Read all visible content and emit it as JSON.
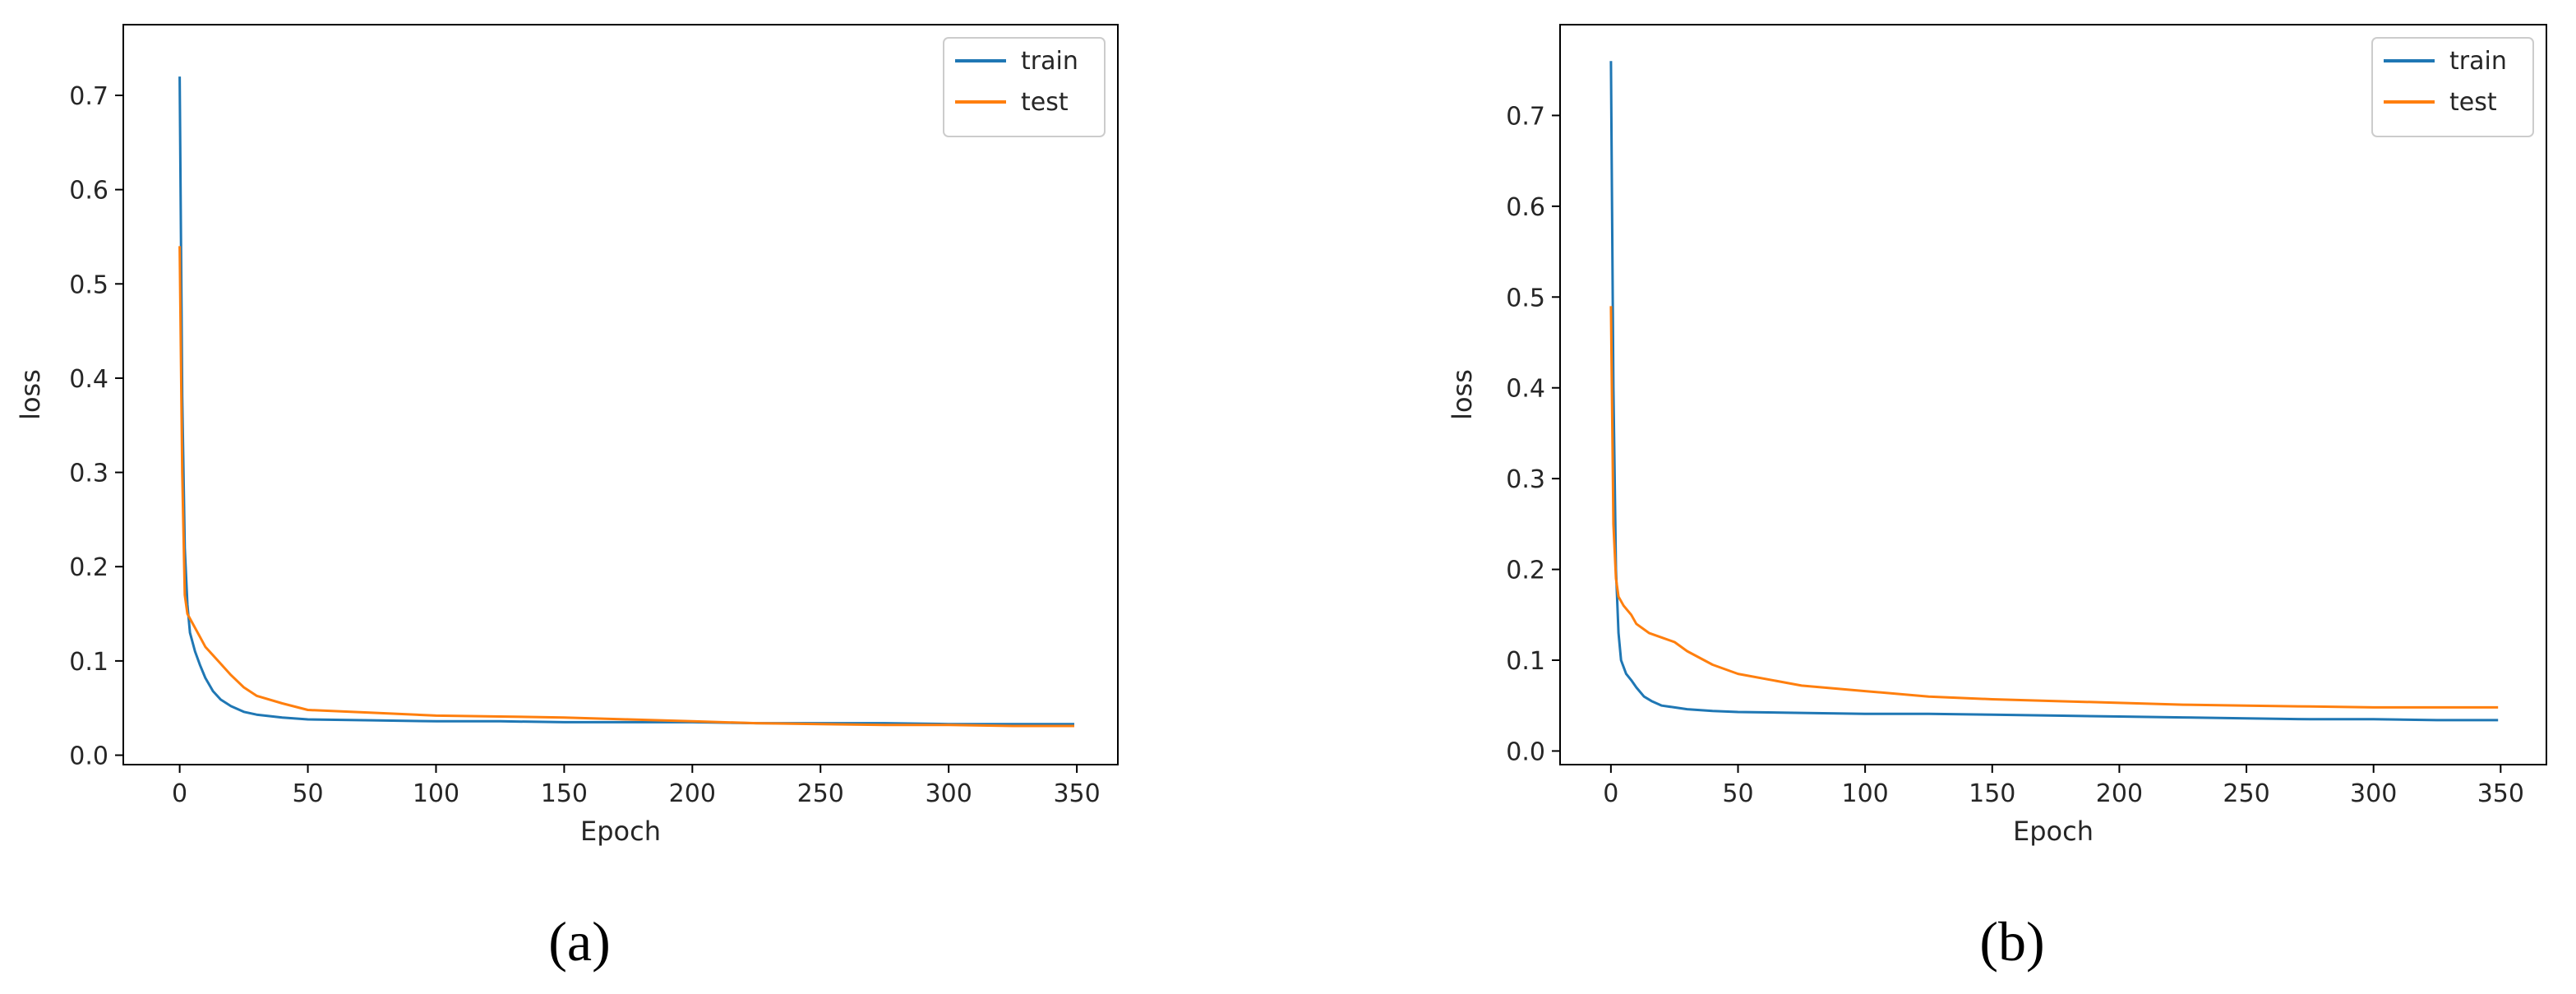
{
  "chart_data": [
    {
      "type": "line",
      "caption": "(a)",
      "xlabel": "Epoch",
      "ylabel": "loss",
      "xlim": [
        -22,
        366
      ],
      "ylim": [
        -0.01,
        0.775
      ],
      "x_ticks": [
        0,
        50,
        100,
        150,
        200,
        250,
        300,
        350
      ],
      "y_ticks": [
        0.0,
        0.1,
        0.2,
        0.3,
        0.4,
        0.5,
        0.6,
        0.7
      ],
      "y_tick_labels": [
        "0.0",
        "0.1",
        "0.2",
        "0.3",
        "0.4",
        "0.5",
        "0.6",
        "0.7"
      ],
      "x_tick_labels": [
        "0",
        "50",
        "100",
        "150",
        "200",
        "250",
        "300",
        "350"
      ],
      "grid": false,
      "legend_position": "top-right",
      "series": [
        {
          "name": "train",
          "color": "#1f77b4",
          "x": [
            0,
            1,
            2,
            3,
            4,
            6,
            8,
            10,
            13,
            16,
            20,
            25,
            30,
            40,
            50,
            75,
            100,
            125,
            150,
            175,
            200,
            225,
            250,
            275,
            300,
            325,
            349
          ],
          "y": [
            0.72,
            0.38,
            0.22,
            0.16,
            0.13,
            0.11,
            0.095,
            0.082,
            0.068,
            0.059,
            0.052,
            0.046,
            0.043,
            0.04,
            0.038,
            0.037,
            0.036,
            0.036,
            0.035,
            0.035,
            0.035,
            0.034,
            0.034,
            0.034,
            0.033,
            0.033,
            0.033
          ]
        },
        {
          "name": "test",
          "color": "#ff7f0e",
          "x": [
            0,
            1,
            2,
            3,
            5,
            8,
            10,
            15,
            20,
            25,
            30,
            40,
            50,
            75,
            100,
            125,
            150,
            175,
            200,
            225,
            250,
            275,
            300,
            325,
            349
          ],
          "y": [
            0.54,
            0.3,
            0.17,
            0.15,
            0.14,
            0.125,
            0.115,
            0.1,
            0.085,
            0.072,
            0.063,
            0.055,
            0.048,
            0.045,
            0.042,
            0.041,
            0.04,
            0.038,
            0.036,
            0.034,
            0.033,
            0.032,
            0.032,
            0.031,
            0.031
          ]
        }
      ]
    },
    {
      "type": "line",
      "caption": "(b)",
      "xlabel": "Epoch",
      "ylabel": "loss",
      "xlim": [
        -20,
        368
      ],
      "ylim": [
        -0.015,
        0.8
      ],
      "x_ticks": [
        0,
        50,
        100,
        150,
        200,
        250,
        300,
        350
      ],
      "y_ticks": [
        0.0,
        0.1,
        0.2,
        0.3,
        0.4,
        0.5,
        0.6,
        0.7
      ],
      "y_tick_labels": [
        "0.0",
        "0.1",
        "0.2",
        "0.3",
        "0.4",
        "0.5",
        "0.6",
        "0.7"
      ],
      "x_tick_labels": [
        "0",
        "50",
        "100",
        "150",
        "200",
        "250",
        "300",
        "350"
      ],
      "grid": false,
      "legend_position": "top-right",
      "series": [
        {
          "name": "train",
          "color": "#1f77b4",
          "x": [
            0,
            1,
            2,
            3,
            4,
            6,
            8,
            10,
            13,
            16,
            20,
            25,
            30,
            40,
            50,
            75,
            100,
            125,
            150,
            175,
            200,
            225,
            250,
            275,
            300,
            325,
            349
          ],
          "y": [
            0.76,
            0.4,
            0.2,
            0.13,
            0.1,
            0.085,
            0.078,
            0.07,
            0.06,
            0.055,
            0.05,
            0.048,
            0.046,
            0.044,
            0.043,
            0.042,
            0.041,
            0.041,
            0.04,
            0.039,
            0.038,
            0.037,
            0.036,
            0.035,
            0.035,
            0.034,
            0.034
          ]
        },
        {
          "name": "test",
          "color": "#ff7f0e",
          "x": [
            0,
            1,
            2,
            3,
            5,
            8,
            10,
            15,
            20,
            25,
            30,
            40,
            50,
            75,
            100,
            125,
            150,
            175,
            200,
            225,
            250,
            275,
            300,
            325,
            349
          ],
          "y": [
            0.49,
            0.25,
            0.19,
            0.17,
            0.16,
            0.15,
            0.14,
            0.13,
            0.125,
            0.12,
            0.11,
            0.095,
            0.085,
            0.072,
            0.066,
            0.06,
            0.057,
            0.055,
            0.053,
            0.051,
            0.05,
            0.049,
            0.048,
            0.048,
            0.048
          ]
        }
      ]
    }
  ]
}
